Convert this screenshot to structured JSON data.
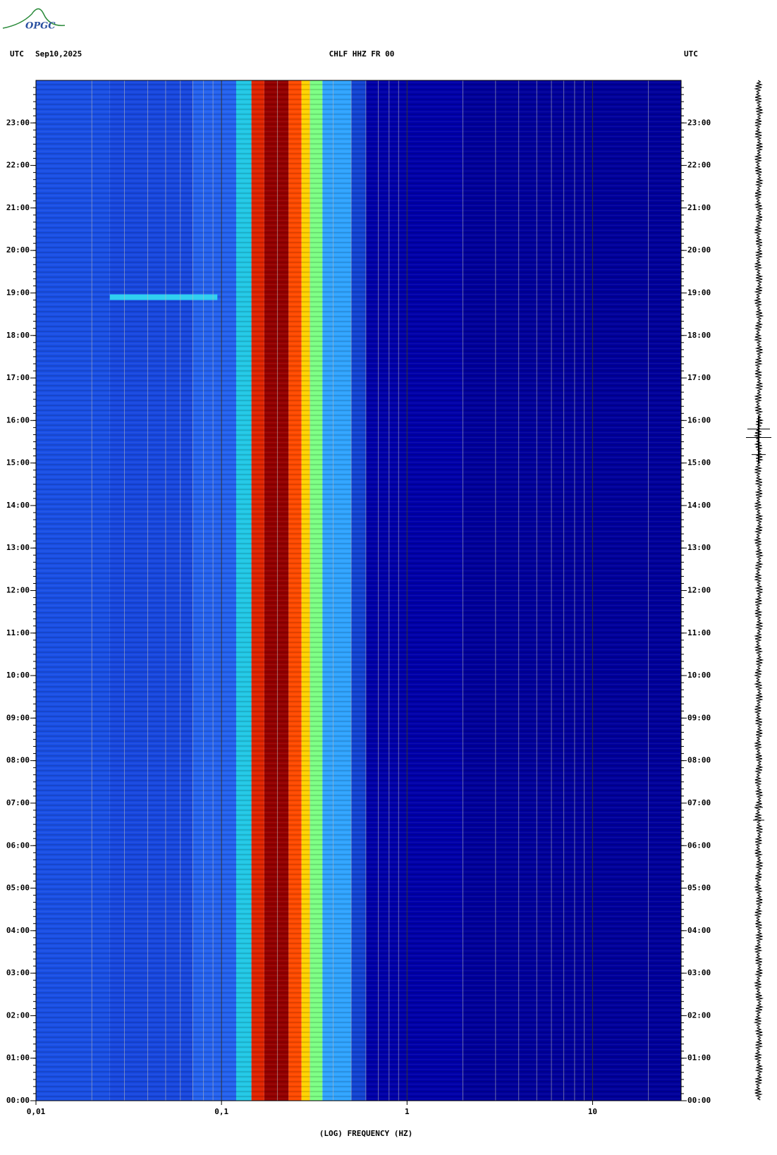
{
  "logo": "OPGC",
  "header": {
    "left_zone": "UTC",
    "date": "Sep10,2025",
    "station": "CHLF HHZ FR 00",
    "right_zone": "UTC"
  },
  "chart_data": {
    "type": "spectrogram",
    "x_label": "(LOG) FREQUENCY (HZ)",
    "xscale": "log",
    "xlim": [
      0.01,
      30
    ],
    "xticks": [
      {
        "value": 0.01,
        "label": "0,01"
      },
      {
        "value": 0.1,
        "label": "0,1"
      },
      1,
      10
    ],
    "ylim": [
      0,
      24
    ],
    "yticks": [
      {
        "value": 0,
        "label": "00:00"
      },
      {
        "value": 1,
        "label": "01:00"
      },
      {
        "value": 2,
        "label": "02:00"
      },
      {
        "value": 3,
        "label": "03:00"
      },
      {
        "value": 4,
        "label": "04:00"
      },
      {
        "value": 5,
        "label": "05:00"
      },
      {
        "value": 6,
        "label": "06:00"
      },
      {
        "value": 7,
        "label": "07:00"
      },
      {
        "value": 8,
        "label": "08:00"
      },
      {
        "value": 9,
        "label": "09:00"
      },
      {
        "value": 10,
        "label": "10:00"
      },
      {
        "value": 11,
        "label": "11:00"
      },
      {
        "value": 12,
        "label": "12:00"
      },
      {
        "value": 13,
        "label": "13:00"
      },
      {
        "value": 14,
        "label": "14:00"
      },
      {
        "value": 15,
        "label": "15:00"
      },
      {
        "value": 16,
        "label": "16:00"
      },
      {
        "value": 17,
        "label": "17:00"
      },
      {
        "value": 18,
        "label": "18:00"
      },
      {
        "value": 19,
        "label": "19:00"
      },
      {
        "value": 20,
        "label": "20:00"
      },
      {
        "value": 21,
        "label": "21:00"
      },
      {
        "value": 22,
        "label": "22:00"
      },
      {
        "value": 23,
        "label": "23:00"
      }
    ],
    "bands": [
      {
        "from": 0.01,
        "to": 0.025,
        "color": "#1a50e6"
      },
      {
        "from": 0.025,
        "to": 0.07,
        "color": "#1848e0"
      },
      {
        "from": 0.07,
        "to": 0.12,
        "color": "#2462f0"
      },
      {
        "from": 0.12,
        "to": 0.145,
        "color": "#22c8e6"
      },
      {
        "from": 0.145,
        "to": 0.17,
        "color": "#e02400"
      },
      {
        "from": 0.17,
        "to": 0.23,
        "color": "#940000"
      },
      {
        "from": 0.23,
        "to": 0.27,
        "color": "#ff4a00"
      },
      {
        "from": 0.27,
        "to": 0.3,
        "color": "#ffd200"
      },
      {
        "from": 0.3,
        "to": 0.35,
        "color": "#7cff84"
      },
      {
        "from": 0.35,
        "to": 0.5,
        "color": "#30a4ff"
      },
      {
        "from": 0.5,
        "to": 0.6,
        "color": "#1244d4"
      },
      {
        "from": 0.6,
        "to": 2,
        "color": "#0000aa"
      },
      {
        "from": 2,
        "to": 30,
        "color": "#00009c"
      }
    ],
    "events": [
      {
        "from": 0.025,
        "to": 0.095,
        "time": 18.9,
        "color": "#30d0f0"
      }
    ]
  }
}
